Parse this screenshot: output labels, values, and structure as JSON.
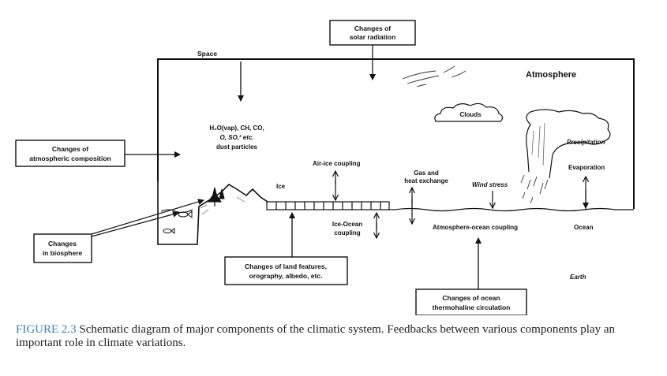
{
  "boxes": {
    "solar": [
      "Changes of",
      "solar radiation"
    ],
    "composition": [
      "Changes of",
      "atmospheric composition"
    ],
    "biosphere": [
      "Changes",
      "in biosphere"
    ],
    "land": [
      "Changes of land features,",
      "orography, albedo, etc."
    ],
    "ocean_circ": [
      "Changes of ocean",
      "thermohaline circulation"
    ]
  },
  "labels": {
    "space": "Space",
    "atmosphere": "Atmosphere",
    "clouds": "Clouds",
    "precipitation": "Precipitation",
    "evaporation": "Evaporation",
    "constituents_line1": "H₂O(vap), CH, CO,",
    "constituents_line2": "O, SO,² etc.",
    "constituents_line3": "dust particles",
    "ice": "Ice",
    "air_ice": "Air-ice coupling",
    "gas_heat_1": "Gas and",
    "gas_heat_2": "heat exchange",
    "wind_stress": "Wind stress",
    "ice_ocean_1": "Ice-Ocean",
    "ice_ocean_2": "coupling",
    "atm_ocean": "Atmosphere-ocean coupling",
    "ocean": "Ocean",
    "earth": "Earth"
  },
  "caption": {
    "figure_number": "FIGURE 2.3",
    "text": "Schematic diagram of major components of the climatic system. Feedbacks between various components play an important role in climate variations."
  }
}
